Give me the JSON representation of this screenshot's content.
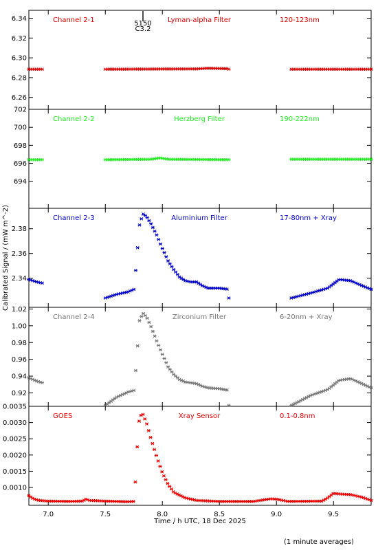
{
  "chart_data": {
    "type": "scatter",
    "x_axis": {
      "label": "Time / h UTC, 18 Dec 2025",
      "range": [
        6.83,
        9.83
      ],
      "ticks": [
        7.0,
        7.5,
        8.0,
        8.5,
        9.0,
        9.5
      ],
      "tick_labels": [
        "7.0",
        "7.5",
        "8.0",
        "8.5",
        "9.0",
        "9.5"
      ]
    },
    "y_axis_label": "Calibrated Signal / (mW m^-2)",
    "footnote": "(1 minute averages)",
    "flare_marker": {
      "x": 7.83,
      "label_top": "5150",
      "label_bottom": "C3.2"
    },
    "panels": [
      {
        "channel": "Channel 2-1",
        "filter": "Lyman-alpha Filter",
        "band": "120-123nm",
        "color": "#dd0000",
        "ylim": [
          6.248,
          6.348
        ],
        "ticks": [
          6.26,
          6.28,
          6.3,
          6.32,
          6.34
        ],
        "tick_labels": [
          "6.26",
          "6.28",
          "6.30",
          "6.32",
          "6.34"
        ],
        "segments": [
          {
            "x": [
              6.83,
              6.95
            ],
            "y": [
              6.2885,
              6.2885
            ]
          },
          {
            "x": [
              7.5,
              8.0,
              8.3,
              8.4,
              8.58
            ],
            "y": [
              6.2885,
              6.2887,
              6.2888,
              6.2895,
              6.289
            ]
          },
          {
            "x": [
              9.13,
              9.83
            ],
            "y": [
              6.2885,
              6.2885
            ]
          }
        ]
      },
      {
        "channel": "Channel 2-2",
        "filter": "Herzberg Filter",
        "band": "190-222nm",
        "color": "#22ee22",
        "ylim": [
          691.0,
          702.0
        ],
        "ticks": [
          694,
          696,
          698,
          700,
          702
        ],
        "tick_labels": [
          "694",
          "696",
          "698",
          "700",
          "702"
        ],
        "segments": [
          {
            "x": [
              6.83,
              6.95
            ],
            "y": [
              696.4,
              696.4
            ]
          },
          {
            "x": [
              7.5,
              7.9,
              7.98,
              8.05,
              8.58
            ],
            "y": [
              696.4,
              696.45,
              696.6,
              696.45,
              696.4
            ]
          },
          {
            "x": [
              9.13,
              9.83
            ],
            "y": [
              696.45,
              696.45
            ]
          }
        ]
      },
      {
        "channel": "Channel 2-3",
        "filter": "Aluminium Filter",
        "band": "17-80nm + Xray",
        "color": "#0000cc",
        "ylim": [
          2.3165,
          2.3965
        ],
        "ticks": [
          2.34,
          2.36,
          2.38
        ],
        "tick_labels": [
          "2.34",
          "2.36",
          "2.38"
        ],
        "segments": [
          {
            "x": [
              6.83,
              6.9,
              6.95
            ],
            "y": [
              2.339,
              2.337,
              2.336
            ]
          },
          {
            "x": [
              7.5,
              7.6,
              7.7,
              7.75,
              7.76,
              7.78,
              7.8,
              7.83,
              7.86,
              7.9,
              7.95,
              8.0,
              8.05,
              8.1,
              8.15,
              8.2,
              8.25,
              8.3,
              8.35,
              8.4,
              8.5,
              8.58
            ],
            "y": [
              2.324,
              2.327,
              2.329,
              2.331,
              2.339,
              2.361,
              2.383,
              2.392,
              2.39,
              2.384,
              2.375,
              2.364,
              2.354,
              2.347,
              2.341,
              2.338,
              2.337,
              2.337,
              2.334,
              2.332,
              2.332,
              2.331
            ]
          },
          {
            "x": [
              9.13,
              9.3,
              9.45,
              9.55,
              9.65,
              9.75,
              9.83
            ],
            "y": [
              2.324,
              2.328,
              2.332,
              2.339,
              2.338,
              2.334,
              2.331
            ]
          }
        ]
      },
      {
        "channel": "Channel 2-4",
        "filter": "Zirconium Filter",
        "band": "6-20nm + Xray",
        "color": "#777777",
        "ylim": [
          0.904,
          1.022
        ],
        "ticks": [
          0.92,
          0.94,
          0.96,
          0.98,
          1.0,
          1.02
        ],
        "tick_labels": [
          "0.92",
          "0.94",
          "0.96",
          "0.98",
          "1.00",
          "1.02"
        ],
        "segments": [
          {
            "x": [
              6.83,
              6.9,
              6.95
            ],
            "y": [
              0.938,
              0.934,
              0.932
            ]
          },
          {
            "x": [
              7.5,
              7.6,
              7.7,
              7.75,
              7.76,
              7.78,
              7.8,
              7.83,
              7.86,
              7.9,
              7.95,
              8.0,
              8.05,
              8.1,
              8.15,
              8.2,
              8.25,
              8.3,
              8.35,
              8.4,
              8.5,
              8.58
            ],
            "y": [
              0.905,
              0.915,
              0.921,
              0.923,
              0.935,
              0.97,
              1.006,
              1.015,
              1.011,
              0.999,
              0.982,
              0.966,
              0.951,
              0.942,
              0.936,
              0.933,
              0.932,
              0.931,
              0.928,
              0.926,
              0.925,
              0.923
            ]
          },
          {
            "x": [
              9.13,
              9.3,
              9.45,
              9.55,
              9.65,
              9.75,
              9.83
            ],
            "y": [
              0.905,
              0.917,
              0.924,
              0.935,
              0.937,
              0.931,
              0.926
            ]
          }
        ]
      },
      {
        "channel": "GOES",
        "filter": "Xray Sensor",
        "band": "0.1-0.8nm",
        "color": "#ee0000",
        "ylim": [
          0.00045,
          0.0035
        ],
        "ticks": [
          0.001,
          0.0015,
          0.002,
          0.0025,
          0.003,
          0.0035
        ],
        "tick_labels": [
          "0.0010",
          "0.0015",
          "0.0020",
          "0.0025",
          "0.0030",
          "0.0035"
        ],
        "segments": [
          {
            "x": [
              6.83,
              6.87,
              6.92,
              7.0,
              7.2,
              7.3,
              7.33,
              7.36,
              7.5,
              7.7,
              7.75,
              7.76,
              7.78,
              7.8,
              7.83,
              7.86,
              7.9,
              7.95,
              8.0,
              8.05,
              8.1,
              8.2,
              8.3,
              8.5,
              8.8,
              8.95,
              9.0,
              9.1,
              9.4,
              9.45,
              9.5,
              9.55,
              9.65,
              9.75,
              9.83
            ],
            "y": [
              0.00075,
              0.00065,
              0.0006,
              0.00058,
              0.00057,
              0.00058,
              0.00064,
              0.0006,
              0.00058,
              0.00056,
              0.00057,
              0.00095,
              0.00225,
              0.0032,
              0.00325,
              0.003,
              0.0025,
              0.00195,
              0.00145,
              0.0011,
              0.00085,
              0.00068,
              0.0006,
              0.00057,
              0.00057,
              0.00065,
              0.00064,
              0.00057,
              0.00058,
              0.00068,
              0.00082,
              0.0008,
              0.00078,
              0.0007,
              0.0006
            ]
          }
        ]
      }
    ]
  }
}
